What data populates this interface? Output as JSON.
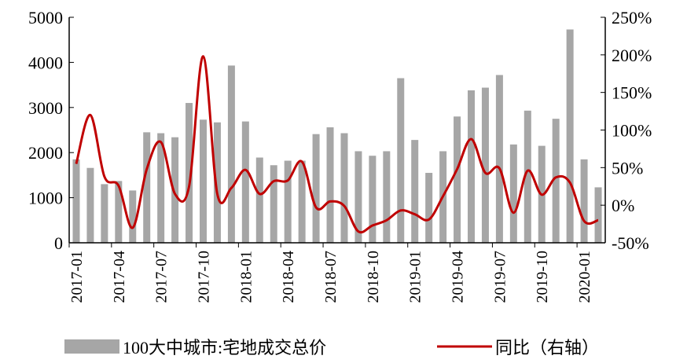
{
  "chart_data": {
    "type": "bar+line",
    "categories": [
      "2017-01",
      "2017-02",
      "2017-03",
      "2017-04",
      "2017-05",
      "2017-06",
      "2017-07",
      "2017-08",
      "2017-09",
      "2017-10",
      "2017-11",
      "2017-12",
      "2018-01",
      "2018-02",
      "2018-03",
      "2018-04",
      "2018-05",
      "2018-06",
      "2018-07",
      "2018-08",
      "2018-09",
      "2018-10",
      "2018-11",
      "2018-12",
      "2019-01",
      "2019-02",
      "2019-03",
      "2019-04",
      "2019-05",
      "2019-06",
      "2019-07",
      "2019-08",
      "2019-09",
      "2019-10",
      "2019-11",
      "2019-12",
      "2020-01",
      "2020-02"
    ],
    "x_tick_labels": [
      "2017-01",
      "2017-04",
      "2017-07",
      "2017-10",
      "2018-01",
      "2018-04",
      "2018-07",
      "2018-10",
      "2019-01",
      "2019-04",
      "2019-07",
      "2019-10",
      "2020-01"
    ],
    "series": [
      {
        "name": "100大中城市:宅地成交总价",
        "type": "bar",
        "axis": "left",
        "color": "#a6a6a6",
        "values": [
          1850,
          1660,
          1300,
          1370,
          1160,
          2450,
          2430,
          2340,
          3100,
          2730,
          2670,
          3930,
          2690,
          1890,
          1720,
          1820,
          1820,
          2410,
          2560,
          2430,
          2030,
          1930,
          2030,
          3650,
          2280,
          1550,
          2030,
          2800,
          3380,
          3440,
          3720,
          2180,
          2930,
          2150,
          2750,
          4730,
          1850,
          1230
        ]
      },
      {
        "name": "同比（右轴）",
        "type": "line",
        "axis": "right",
        "color": "#c00000",
        "values": [
          55,
          120,
          38,
          26,
          -30,
          48,
          84,
          15,
          25,
          198,
          15,
          23,
          47,
          15,
          32,
          33,
          58,
          -3,
          5,
          -1,
          -35,
          -27,
          -20,
          -7,
          -12,
          -19,
          12,
          48,
          88,
          43,
          49,
          -10,
          46,
          14,
          37,
          30,
          -21,
          -20
        ]
      }
    ],
    "left_axis": {
      "ylim": [
        0,
        5000
      ],
      "ticks": [
        "0",
        "1000",
        "2000",
        "3000",
        "4000",
        "5000"
      ]
    },
    "right_axis": {
      "ylim": [
        -50,
        250
      ],
      "ticks": [
        "-50%",
        "0%",
        "50%",
        "100%",
        "150%",
        "200%",
        "250%"
      ]
    },
    "legend_placement": "bottom",
    "grid": false
  }
}
